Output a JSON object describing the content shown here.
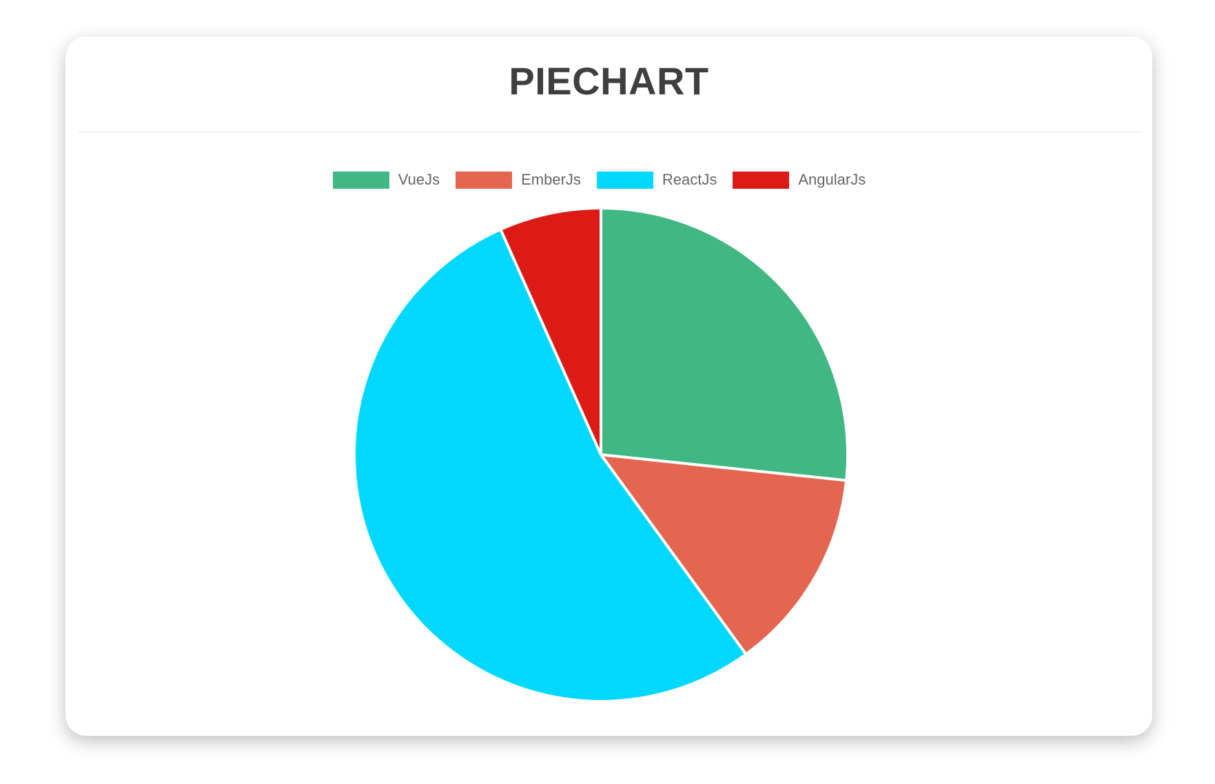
{
  "header": {
    "title": "PIECHART"
  },
  "chart_data": {
    "type": "pie",
    "title": "PIECHART",
    "categories": [
      "VueJs",
      "EmberJs",
      "ReactJs",
      "AngularJs"
    ],
    "values": [
      40,
      20,
      80,
      10
    ],
    "colors": [
      "#41B883",
      "#E46651",
      "#00D8FF",
      "#DD1B16"
    ],
    "legend_position": "top",
    "start_angle_deg": 0,
    "direction": "clockwise",
    "slice_border_color": "#ffffff"
  },
  "style": {
    "title_color": "#3f3f3f",
    "legend_text_color": "#666666",
    "divider_color": "#e9e9e9",
    "card_background": "#ffffff"
  }
}
